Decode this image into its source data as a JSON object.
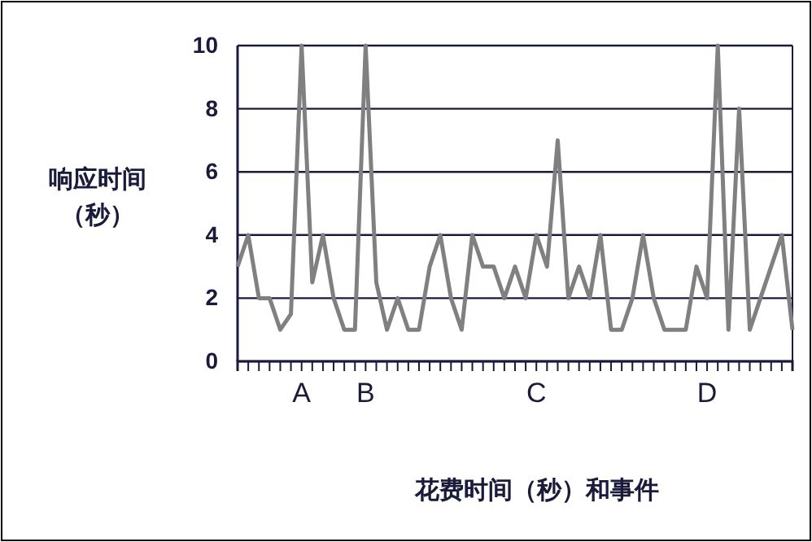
{
  "chart_data": {
    "type": "line",
    "xlabel": "花费时间（秒）和事件",
    "ylabel": "响应时间（秒）",
    "categories": [
      null,
      null,
      null,
      null,
      null,
      null,
      "A",
      null,
      null,
      null,
      null,
      null,
      "B",
      null,
      null,
      null,
      null,
      null,
      null,
      null,
      null,
      null,
      null,
      null,
      null,
      null,
      null,
      null,
      "C",
      null,
      null,
      null,
      null,
      null,
      null,
      null,
      null,
      null,
      null,
      null,
      null,
      null,
      null,
      null,
      "D",
      null,
      null,
      null,
      null,
      null,
      null,
      null,
      null
    ],
    "series": [
      {
        "color": "#808080",
        "values": [
          3,
          4,
          2,
          2,
          1,
          1.5,
          10,
          2.5,
          4,
          2,
          1,
          1,
          10,
          2.5,
          1,
          2,
          1,
          1,
          3,
          4,
          2,
          1,
          4,
          3,
          3,
          2,
          3,
          2,
          4,
          3,
          7,
          2,
          3,
          2,
          4,
          1,
          1,
          2,
          4,
          2,
          1,
          1,
          1,
          3,
          2,
          10,
          1,
          8,
          1,
          2,
          3,
          4,
          1
        ]
      }
    ],
    "ylim": [
      0,
      10
    ],
    "yticks": [
      0,
      2,
      4,
      6,
      8,
      10
    ],
    "grid": "y",
    "marker": "none",
    "line_style": "solid"
  }
}
